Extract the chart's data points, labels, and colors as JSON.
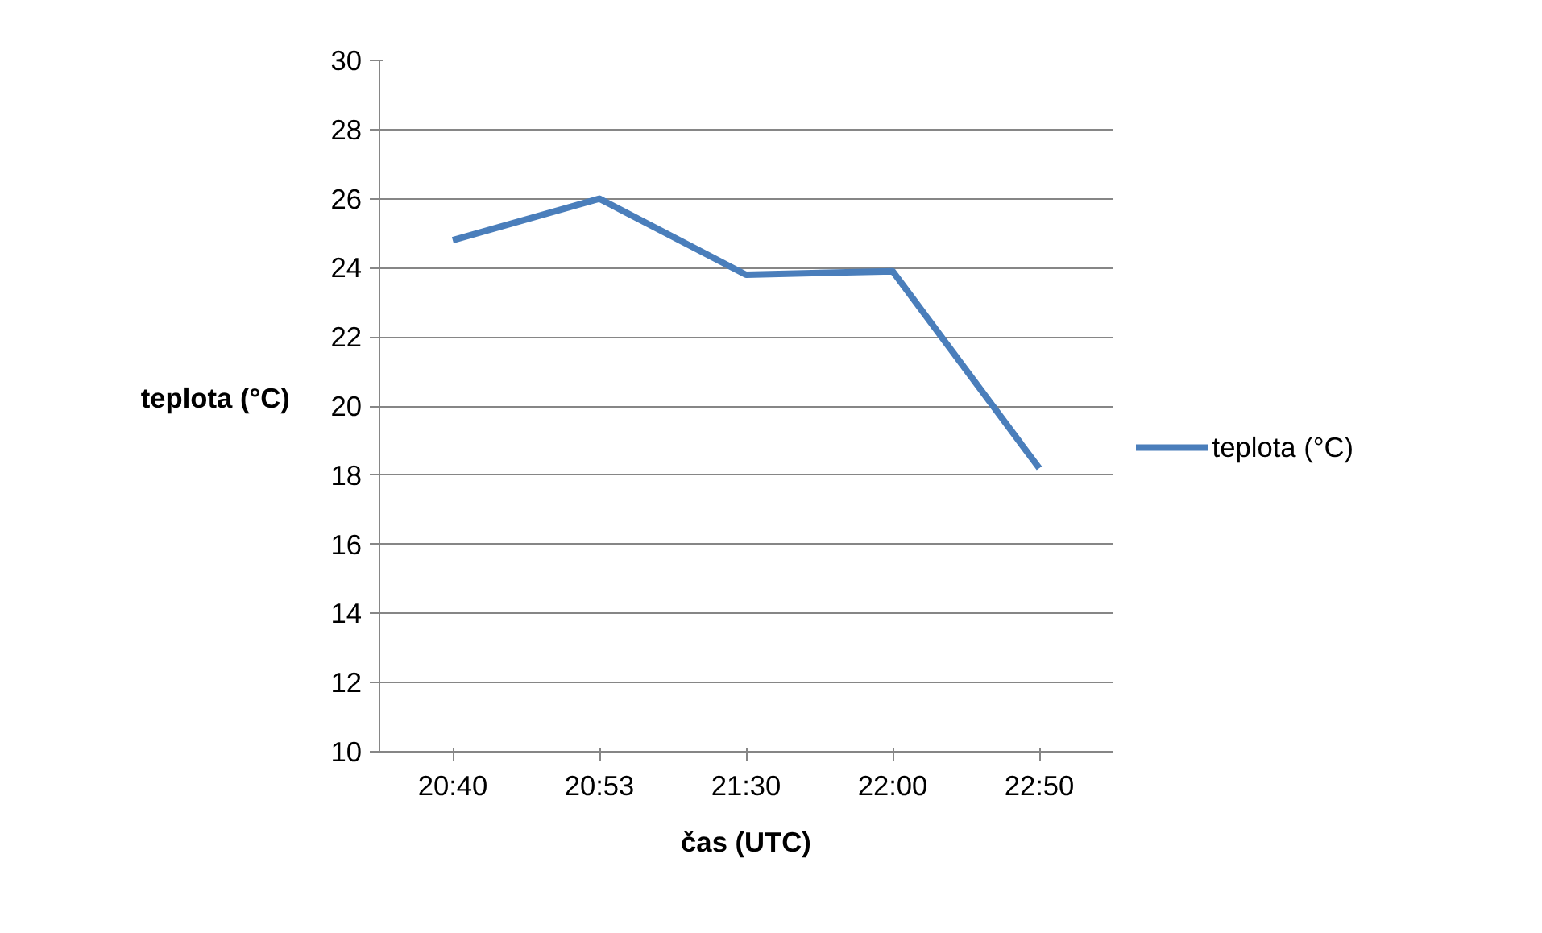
{
  "chart_data": {
    "type": "line",
    "xlabel": "čas (UTC)",
    "ylabel": "teplota (°C)",
    "categories": [
      "20:40",
      "20:53",
      "21:30",
      "22:00",
      "22:50"
    ],
    "series": [
      {
        "name": "teplota (°C)",
        "color": "#4a7ebb",
        "values": [
          24.8,
          26.0,
          23.8,
          23.9,
          18.2
        ]
      }
    ],
    "ylim": [
      10,
      30
    ],
    "yticks": [
      10,
      12,
      14,
      16,
      18,
      20,
      22,
      24,
      26,
      28,
      30
    ],
    "grid": "y",
    "legend": "right",
    "marker": "none",
    "line_style": "solid"
  }
}
